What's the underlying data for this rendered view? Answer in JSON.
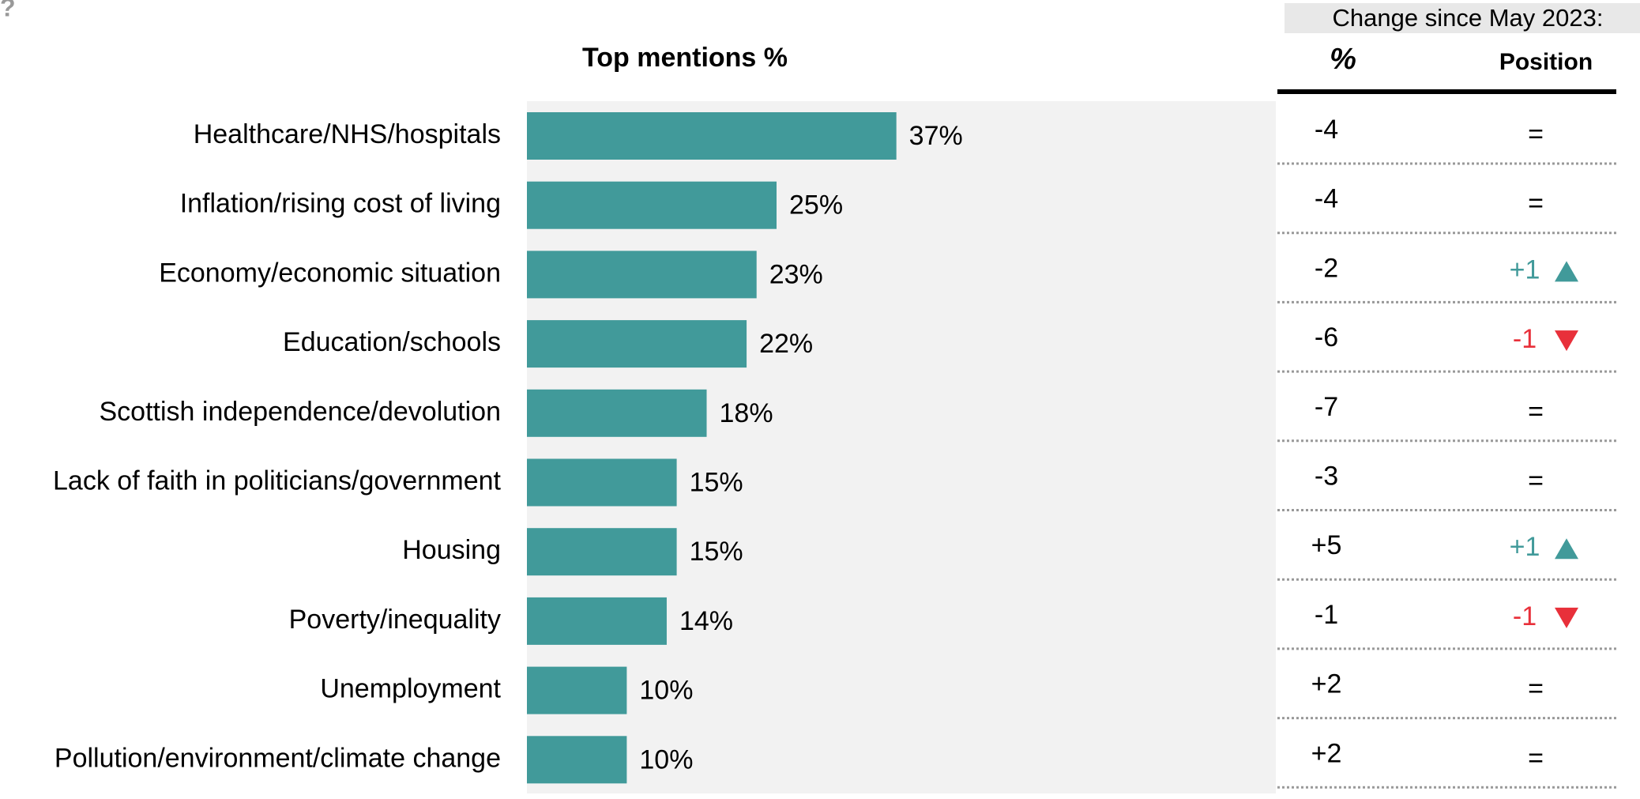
{
  "corner_mark": "?",
  "chart_data": {
    "type": "bar",
    "orientation": "horizontal",
    "title": "Top mentions %",
    "categories": [
      "Healthcare/NHS/hospitals",
      "Inflation/rising cost of living",
      "Economy/economic situation",
      "Education/schools",
      "Scottish independence/devolution",
      "Lack of faith in politicians/government",
      "Housing",
      "Poverty/inequality",
      "Unemployment",
      "Pollution/environment/climate change"
    ],
    "values": [
      37,
      25,
      23,
      22,
      18,
      15,
      15,
      14,
      10,
      10
    ],
    "value_labels": [
      "37%",
      "25%",
      "23%",
      "22%",
      "18%",
      "15%",
      "15%",
      "14%",
      "10%",
      "10%"
    ],
    "color": "#419a9a",
    "panel_color": "#f2f2f2",
    "xlim": [
      0,
      75
    ]
  },
  "table": {
    "header": "Change since May 2023:",
    "columns": [
      "%",
      "Position"
    ],
    "up_color": "#419a9a",
    "down_color": "#e8303a",
    "rows": [
      {
        "change": "-4",
        "position": "="
      },
      {
        "change": "-4",
        "position": "="
      },
      {
        "change": "-2",
        "position": "+1"
      },
      {
        "change": "-6",
        "position": "-1"
      },
      {
        "change": "-7",
        "position": "="
      },
      {
        "change": "-3",
        "position": "="
      },
      {
        "change": "+5",
        "position": "+1"
      },
      {
        "change": "-1",
        "position": "-1"
      },
      {
        "change": "+2",
        "position": "="
      },
      {
        "change": "+2",
        "position": "="
      }
    ]
  }
}
